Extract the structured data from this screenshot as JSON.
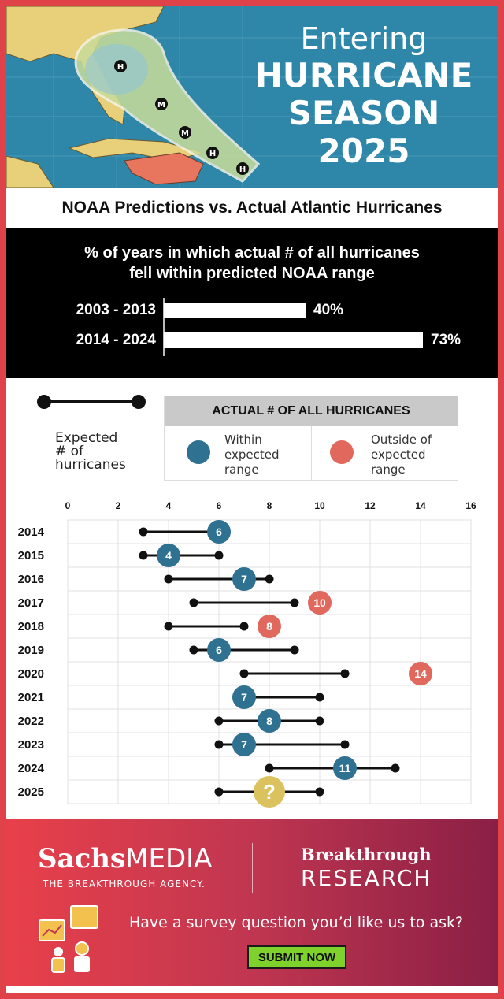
{
  "hero": {
    "line1": "Entering",
    "line2": "HURRICANE",
    "line3": "SEASON",
    "line4": "2025",
    "map_markers": [
      "H",
      "M",
      "M",
      "H",
      "H"
    ],
    "colors": {
      "ocean": "#2e86a8",
      "land": "#e8cf7a",
      "cuba": "#e8765f",
      "cone": "#c8dd9a"
    }
  },
  "subtitle": "NOAA Predictions vs. Actual Atlantic Hurricanes",
  "noaa_summary": {
    "title_line1": "% of years in which actual # of all hurricanes",
    "title_line2": "fell within predicted NOAA range",
    "rows": [
      {
        "label": "2003 - 2013",
        "value": 40,
        "value_label": "40%"
      },
      {
        "label": "2014 - 2024",
        "value": 73,
        "value_label": "73%"
      }
    ]
  },
  "legend": {
    "expected_label_1": "Expected",
    "expected_label_2": "# of",
    "expected_label_3": "hurricanes",
    "actual_header": "ACTUAL # OF ALL HURRICANES",
    "within_1": "Within",
    "within_2": "expected",
    "within_3": "range",
    "outside_1": "Outside of",
    "outside_2": "expected",
    "outside_3": "range",
    "colors": {
      "within": "#2e7191",
      "outside": "#e0685c",
      "unknown": "#dcc25e"
    }
  },
  "chart_data": {
    "type": "dumbbell",
    "xlim": [
      0,
      16
    ],
    "xticks": [
      0,
      2,
      4,
      6,
      8,
      10,
      12,
      14,
      16
    ],
    "rows": [
      {
        "year": "2014",
        "low": 3,
        "high": 6,
        "actual": 6,
        "status": "within",
        "label": "6"
      },
      {
        "year": "2015",
        "low": 3,
        "high": 6,
        "actual": 4,
        "status": "within",
        "label": "4"
      },
      {
        "year": "2016",
        "low": 4,
        "high": 8,
        "actual": 7,
        "status": "within",
        "label": "7"
      },
      {
        "year": "2017",
        "low": 5,
        "high": 9,
        "actual": 10,
        "status": "outside",
        "label": "10"
      },
      {
        "year": "2018",
        "low": 4,
        "high": 7,
        "actual": 8,
        "status": "outside",
        "label": "8"
      },
      {
        "year": "2019",
        "low": 5,
        "high": 9,
        "actual": 6,
        "status": "within",
        "label": "6"
      },
      {
        "year": "2020",
        "low": 7,
        "high": 11,
        "actual": 14,
        "status": "outside",
        "label": "14"
      },
      {
        "year": "2021",
        "low": 7,
        "high": 10,
        "actual": 7,
        "status": "within",
        "label": "7"
      },
      {
        "year": "2022",
        "low": 6,
        "high": 10,
        "actual": 8,
        "status": "within",
        "label": "8"
      },
      {
        "year": "2023",
        "low": 6,
        "high": 11,
        "actual": 7,
        "status": "within",
        "label": "7"
      },
      {
        "year": "2024",
        "low": 8,
        "high": 13,
        "actual": 11,
        "status": "within",
        "label": "11"
      },
      {
        "year": "2025",
        "low": 6,
        "high": 10,
        "actual": 8,
        "status": "unknown",
        "label": "?"
      }
    ]
  },
  "footer": {
    "brand_bold": "Sachs",
    "brand_rest": "MEDIA",
    "tagline": "THE BREAKTHROUGH AGENCY.",
    "research_1": "Breakthrough",
    "research_2": "RESEARCH",
    "cta": "Have a survey question you’d like us to ask?",
    "submit": "SUBMIT NOW"
  }
}
